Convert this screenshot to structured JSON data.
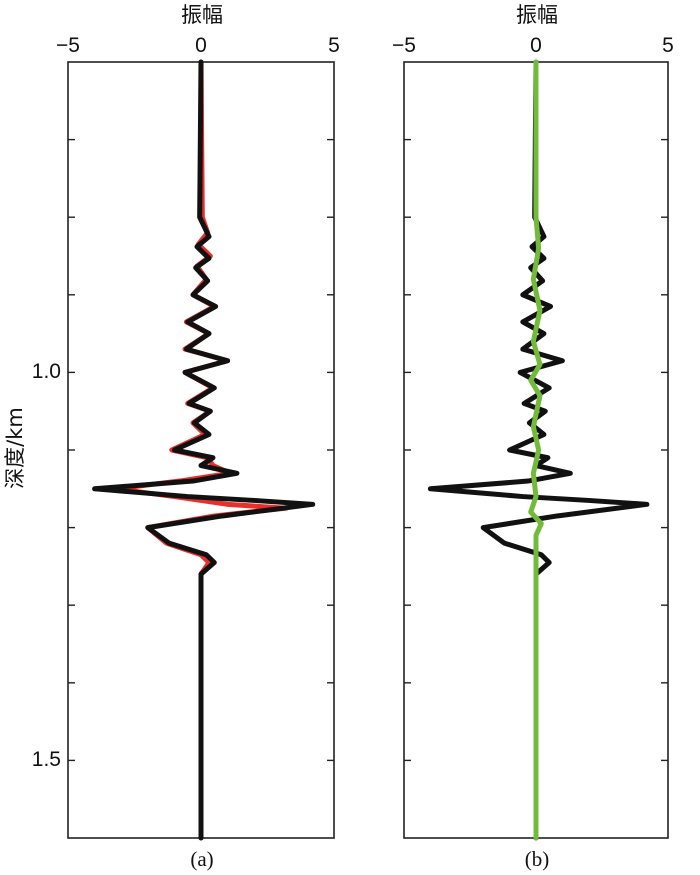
{
  "chart_data": {
    "type": "line",
    "ylabel": "深度/km",
    "y_axis_ticks": [
      "1.0",
      "1.5"
    ],
    "ylim": [
      0.6,
      1.6
    ],
    "colors": {
      "black": "#111111",
      "red": "#e8302a",
      "green": "#72bb3a",
      "axis": "#222222"
    },
    "panels": [
      {
        "label": "(a)",
        "xlabel": "振幅",
        "xlim": [
          -5,
          5
        ],
        "x_ticks": [
          "−5",
          "0",
          "5"
        ],
        "series": [
          {
            "color": "red",
            "points": [
              [
                0,
                0.6
              ],
              [
                0.05,
                0.8
              ],
              [
                0.25,
                0.82
              ],
              [
                -0.1,
                0.835
              ],
              [
                0.35,
                0.85
              ],
              [
                -0.15,
                0.863
              ],
              [
                0.2,
                0.88
              ],
              [
                -0.3,
                0.9
              ],
              [
                0.5,
                0.915
              ],
              [
                -0.55,
                0.935
              ],
              [
                0.3,
                0.95
              ],
              [
                -0.6,
                0.97
              ],
              [
                1.0,
                0.985
              ],
              [
                -0.6,
                1.0
              ],
              [
                0.45,
                1.02
              ],
              [
                -0.5,
                1.04
              ],
              [
                0.35,
                1.05
              ],
              [
                -0.3,
                1.065
              ],
              [
                0.15,
                1.08
              ],
              [
                -1.1,
                1.1
              ],
              [
                0.25,
                1.11
              ],
              [
                0.45,
                1.12
              ],
              [
                1.1,
                1.13
              ],
              [
                -0.8,
                1.14
              ],
              [
                -3.2,
                1.15
              ],
              [
                -1.0,
                1.16
              ],
              [
                1.0,
                1.17
              ],
              [
                3.2,
                1.175
              ],
              [
                0.5,
                1.185
              ],
              [
                -2.0,
                1.2
              ],
              [
                -1.3,
                1.22
              ],
              [
                0.0,
                1.235
              ],
              [
                0.3,
                1.245
              ],
              [
                0.0,
                1.26
              ],
              [
                0.0,
                1.6
              ]
            ]
          },
          {
            "color": "black",
            "points": [
              [
                0,
                0.6
              ],
              [
                -0.05,
                0.8
              ],
              [
                0.3,
                0.825
              ],
              [
                -0.15,
                0.838
              ],
              [
                0.3,
                0.853
              ],
              [
                -0.2,
                0.865
              ],
              [
                0.25,
                0.882
              ],
              [
                -0.3,
                0.9
              ],
              [
                0.55,
                0.915
              ],
              [
                -0.5,
                0.935
              ],
              [
                0.3,
                0.95
              ],
              [
                -0.55,
                0.97
              ],
              [
                1.0,
                0.985
              ],
              [
                -0.6,
                1.0
              ],
              [
                0.5,
                1.02
              ],
              [
                -0.45,
                1.04
              ],
              [
                0.35,
                1.05
              ],
              [
                -0.25,
                1.065
              ],
              [
                0.3,
                1.08
              ],
              [
                -1.0,
                1.1
              ],
              [
                0.45,
                1.11
              ],
              [
                0.0,
                1.12
              ],
              [
                1.35,
                1.13
              ],
              [
                -0.3,
                1.14
              ],
              [
                -4.0,
                1.15
              ],
              [
                -0.5,
                1.16
              ],
              [
                2.0,
                1.165
              ],
              [
                4.2,
                1.17
              ],
              [
                0.8,
                1.185
              ],
              [
                -2.0,
                1.2
              ],
              [
                -1.2,
                1.22
              ],
              [
                0.2,
                1.235
              ],
              [
                0.5,
                1.245
              ],
              [
                0.0,
                1.26
              ],
              [
                0.0,
                1.6
              ]
            ]
          }
        ]
      },
      {
        "label": "(b)",
        "xlabel": "振幅",
        "xlim": [
          -5,
          5
        ],
        "x_ticks": [
          "−5",
          "0",
          "5"
        ],
        "series": [
          {
            "color": "black",
            "points": [
              [
                0,
                0.6
              ],
              [
                -0.05,
                0.8
              ],
              [
                0.3,
                0.825
              ],
              [
                -0.15,
                0.838
              ],
              [
                0.3,
                0.853
              ],
              [
                -0.2,
                0.865
              ],
              [
                0.25,
                0.882
              ],
              [
                -0.5,
                0.9
              ],
              [
                0.55,
                0.915
              ],
              [
                -0.5,
                0.935
              ],
              [
                0.3,
                0.95
              ],
              [
                -0.5,
                0.97
              ],
              [
                1.0,
                0.985
              ],
              [
                -0.6,
                1.0
              ],
              [
                0.5,
                1.02
              ],
              [
                -0.45,
                1.04
              ],
              [
                0.35,
                1.05
              ],
              [
                -0.25,
                1.065
              ],
              [
                0.3,
                1.08
              ],
              [
                -1.0,
                1.1
              ],
              [
                0.45,
                1.11
              ],
              [
                0.0,
                1.12
              ],
              [
                1.3,
                1.13
              ],
              [
                -0.3,
                1.14
              ],
              [
                -4.0,
                1.15
              ],
              [
                -0.5,
                1.16
              ],
              [
                2.0,
                1.165
              ],
              [
                4.2,
                1.17
              ],
              [
                0.8,
                1.185
              ],
              [
                -2.0,
                1.2
              ],
              [
                -1.2,
                1.22
              ],
              [
                0.2,
                1.235
              ],
              [
                0.5,
                1.245
              ],
              [
                0.0,
                1.26
              ],
              [
                0.0,
                1.6
              ]
            ]
          },
          {
            "color": "green",
            "points": [
              [
                0,
                0.6
              ],
              [
                0.0,
                0.8
              ],
              [
                0.1,
                0.84
              ],
              [
                -0.1,
                0.88
              ],
              [
                0.15,
                0.92
              ],
              [
                -0.1,
                0.96
              ],
              [
                0.15,
                0.99
              ],
              [
                -0.2,
                1.01
              ],
              [
                0.15,
                1.03
              ],
              [
                -0.1,
                1.07
              ],
              [
                0.1,
                1.1
              ],
              [
                -0.1,
                1.13
              ],
              [
                0.0,
                1.16
              ],
              [
                -0.2,
                1.18
              ],
              [
                0.2,
                1.195
              ],
              [
                0.0,
                1.21
              ],
              [
                0.0,
                1.6
              ]
            ]
          }
        ]
      }
    ]
  }
}
